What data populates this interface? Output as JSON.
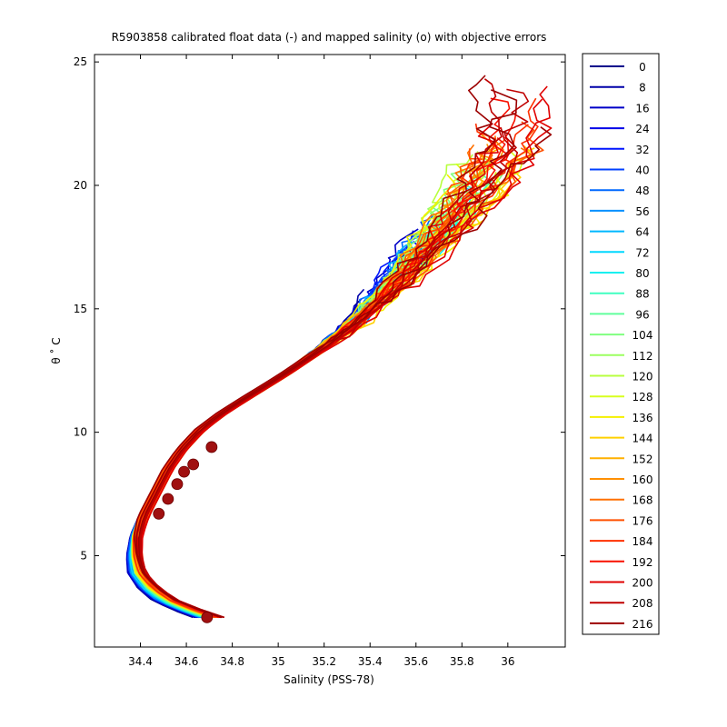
{
  "chart_data": {
    "type": "line",
    "title": "R5903858 calibrated float data (-) and mapped salinity (o) with objective errors",
    "xlabel": "Salinity (PSS-78)",
    "ylabel": "θ ˚ C",
    "xlim": [
      34.2,
      36.25
    ],
    "ylim": [
      1.3,
      25.3
    ],
    "xticks": [
      34.4,
      34.6,
      34.8,
      35,
      35.2,
      35.4,
      35.6,
      35.8,
      36
    ],
    "xticklabels": [
      "34.4",
      "34.6",
      "34.8",
      "35",
      "35.2",
      "35.4",
      "35.6",
      "35.8",
      "36"
    ],
    "yticks": [
      5,
      10,
      15,
      20,
      25
    ],
    "yticklabels": [
      "5",
      "10",
      "15",
      "20",
      "25"
    ],
    "grid": false,
    "legend_position": "outside-right",
    "legend": [
      "0",
      "8",
      "16",
      "24",
      "32",
      "40",
      "48",
      "56",
      "64",
      "72",
      "80",
      "88",
      "96",
      "104",
      "112",
      "120",
      "128",
      "136",
      "144",
      "152",
      "160",
      "168",
      "176",
      "184",
      "192",
      "200",
      "208",
      "216"
    ],
    "colormap": "jet",
    "series_colors": [
      "#00008b",
      "#0000a8",
      "#0000c8",
      "#0000e8",
      "#0016ff",
      "#0040ff",
      "#0068ff",
      "#0090ff",
      "#00b8ff",
      "#00d8ff",
      "#10f0f0",
      "#40ffc0",
      "#60ff9c",
      "#80ff80",
      "#9cff60",
      "#b8ff40",
      "#d8ff20",
      "#f4f000",
      "#ffd000",
      "#ffb000",
      "#ff9000",
      "#ff7000",
      "#ff5000",
      "#ff3000",
      "#f81000",
      "#e00000",
      "#c00000",
      "#9c0000"
    ],
    "mapped_points_color": "#a01010",
    "series_profile": {
      "salinity": [
        34.69,
        34.6,
        34.5,
        34.43,
        34.38,
        34.37,
        34.38,
        34.42,
        34.47,
        34.52,
        34.58,
        34.66,
        34.76,
        34.88,
        35.02,
        35.18,
        35.36,
        35.56,
        35.76,
        35.95
      ],
      "theta": [
        2.5,
        2.8,
        3.2,
        3.7,
        4.3,
        5.0,
        5.8,
        6.7,
        7.6,
        8.5,
        9.3,
        10.1,
        10.8,
        11.5,
        12.3,
        13.3,
        14.6,
        16.5,
        18.7,
        21.3
      ]
    },
    "mapped_salinity": {
      "salinity": [
        34.69,
        34.48,
        34.52,
        34.56,
        34.59,
        34.63,
        34.71
      ],
      "theta": [
        2.5,
        6.7,
        7.3,
        7.9,
        8.4,
        8.7,
        9.4
      ]
    }
  }
}
